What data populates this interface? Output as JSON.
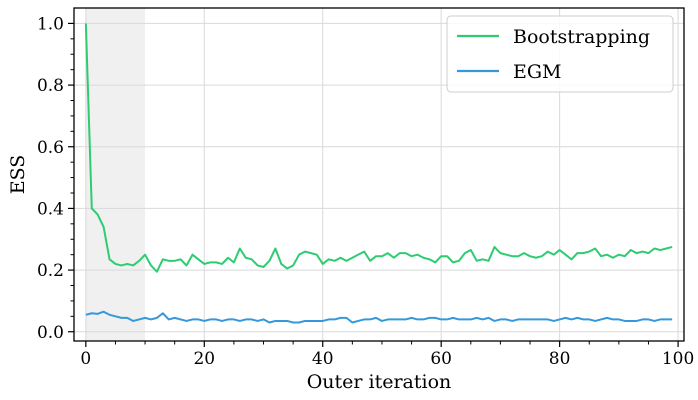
{
  "chart_data": {
    "type": "line",
    "title": "",
    "xlabel": "Outer iteration",
    "ylabel": "ESS",
    "xlim": [
      -2,
      101
    ],
    "ylim": [
      -0.03,
      1.05
    ],
    "xticks": [
      0,
      20,
      40,
      60,
      80,
      100
    ],
    "yticks": [
      0.0,
      0.2,
      0.4,
      0.6,
      0.8,
      1.0
    ],
    "ytick_labels": [
      "0.0",
      "0.2",
      "0.4",
      "0.6",
      "0.8",
      "1.0"
    ],
    "grid": true,
    "legend_position": "top-right",
    "shaded_region": {
      "x_start": 0,
      "x_end": 10,
      "color": "#f0f0f0"
    },
    "series": [
      {
        "name": "Bootstrapping",
        "color": "#2ecc71",
        "x": [
          0,
          1,
          2,
          3,
          4,
          5,
          6,
          7,
          8,
          9,
          10,
          11,
          12,
          13,
          14,
          15,
          16,
          17,
          18,
          19,
          20,
          21,
          22,
          23,
          24,
          25,
          26,
          27,
          28,
          29,
          30,
          31,
          32,
          33,
          34,
          35,
          36,
          37,
          38,
          39,
          40,
          41,
          42,
          43,
          44,
          45,
          46,
          47,
          48,
          49,
          50,
          51,
          52,
          53,
          54,
          55,
          56,
          57,
          58,
          59,
          60,
          61,
          62,
          63,
          64,
          65,
          66,
          67,
          68,
          69,
          70,
          71,
          72,
          73,
          74,
          75,
          76,
          77,
          78,
          79,
          80,
          81,
          82,
          83,
          84,
          85,
          86,
          87,
          88,
          89,
          90,
          91,
          92,
          93,
          94,
          95,
          96,
          97,
          98,
          99
        ],
        "values": [
          1.0,
          0.4,
          0.38,
          0.34,
          0.235,
          0.22,
          0.215,
          0.22,
          0.215,
          0.23,
          0.25,
          0.215,
          0.195,
          0.235,
          0.23,
          0.23,
          0.235,
          0.215,
          0.25,
          0.235,
          0.22,
          0.225,
          0.225,
          0.22,
          0.24,
          0.225,
          0.27,
          0.24,
          0.235,
          0.215,
          0.21,
          0.23,
          0.27,
          0.22,
          0.205,
          0.215,
          0.25,
          0.26,
          0.255,
          0.25,
          0.22,
          0.235,
          0.23,
          0.24,
          0.23,
          0.24,
          0.25,
          0.26,
          0.23,
          0.245,
          0.245,
          0.255,
          0.24,
          0.255,
          0.255,
          0.245,
          0.25,
          0.24,
          0.235,
          0.225,
          0.245,
          0.245,
          0.225,
          0.23,
          0.255,
          0.265,
          0.23,
          0.235,
          0.23,
          0.275,
          0.255,
          0.25,
          0.245,
          0.245,
          0.255,
          0.245,
          0.24,
          0.245,
          0.26,
          0.25,
          0.265,
          0.25,
          0.235,
          0.255,
          0.255,
          0.26,
          0.27,
          0.245,
          0.25,
          0.24,
          0.25,
          0.245,
          0.265,
          0.255,
          0.26,
          0.255,
          0.27,
          0.265,
          0.27,
          0.275
        ]
      },
      {
        "name": "EGM",
        "color": "#3498db",
        "x": [
          0,
          1,
          2,
          3,
          4,
          5,
          6,
          7,
          8,
          9,
          10,
          11,
          12,
          13,
          14,
          15,
          16,
          17,
          18,
          19,
          20,
          21,
          22,
          23,
          24,
          25,
          26,
          27,
          28,
          29,
          30,
          31,
          32,
          33,
          34,
          35,
          36,
          37,
          38,
          39,
          40,
          41,
          42,
          43,
          44,
          45,
          46,
          47,
          48,
          49,
          50,
          51,
          52,
          53,
          54,
          55,
          56,
          57,
          58,
          59,
          60,
          61,
          62,
          63,
          64,
          65,
          66,
          67,
          68,
          69,
          70,
          71,
          72,
          73,
          74,
          75,
          76,
          77,
          78,
          79,
          80,
          81,
          82,
          83,
          84,
          85,
          86,
          87,
          88,
          89,
          90,
          91,
          92,
          93,
          94,
          95,
          96,
          97,
          98,
          99
        ],
        "values": [
          0.055,
          0.06,
          0.058,
          0.065,
          0.055,
          0.05,
          0.045,
          0.045,
          0.035,
          0.04,
          0.045,
          0.04,
          0.045,
          0.06,
          0.04,
          0.045,
          0.04,
          0.035,
          0.04,
          0.04,
          0.035,
          0.04,
          0.04,
          0.035,
          0.04,
          0.04,
          0.035,
          0.04,
          0.04,
          0.035,
          0.04,
          0.03,
          0.035,
          0.035,
          0.035,
          0.03,
          0.03,
          0.035,
          0.035,
          0.035,
          0.035,
          0.04,
          0.04,
          0.045,
          0.045,
          0.03,
          0.035,
          0.04,
          0.04,
          0.045,
          0.035,
          0.04,
          0.04,
          0.04,
          0.04,
          0.045,
          0.04,
          0.04,
          0.045,
          0.045,
          0.04,
          0.04,
          0.045,
          0.04,
          0.04,
          0.04,
          0.045,
          0.04,
          0.045,
          0.035,
          0.04,
          0.04,
          0.035,
          0.04,
          0.04,
          0.04,
          0.04,
          0.04,
          0.04,
          0.035,
          0.04,
          0.045,
          0.04,
          0.045,
          0.04,
          0.04,
          0.035,
          0.04,
          0.045,
          0.04,
          0.04,
          0.035,
          0.035,
          0.035,
          0.04,
          0.04,
          0.035,
          0.04,
          0.04,
          0.04
        ]
      }
    ]
  }
}
